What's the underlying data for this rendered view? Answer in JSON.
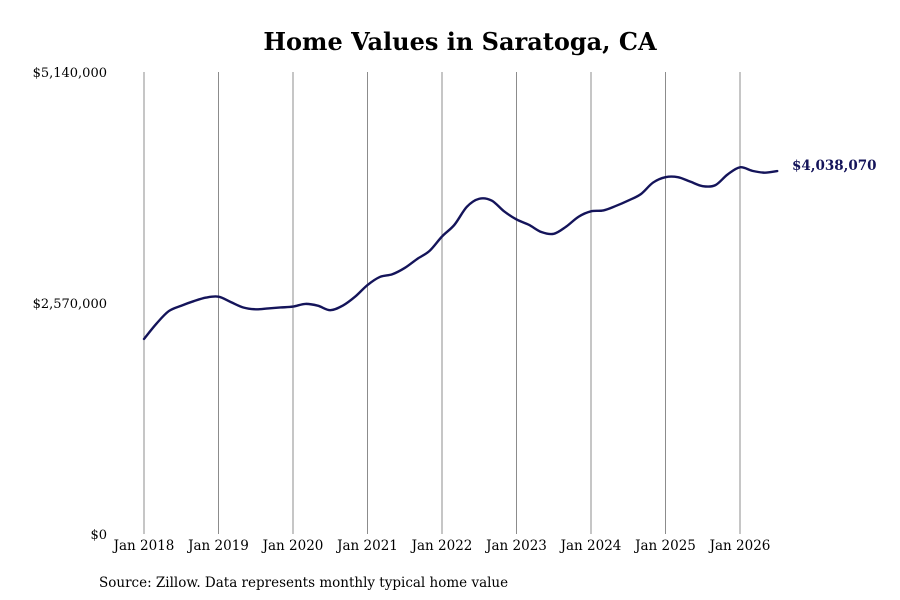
{
  "chart_data": {
    "type": "line",
    "title": "Home Values in Saratoga, CA",
    "xlabel": "",
    "ylabel": "",
    "ylim": [
      0,
      5140000
    ],
    "xlim": [
      "2018-01",
      "2026-07"
    ],
    "y_ticks": [
      "$0",
      "$2,570,000",
      "$5,140,000"
    ],
    "x_ticks": [
      "Jan 2018",
      "Jan 2019",
      "Jan 2020",
      "Jan 2021",
      "Jan 2022",
      "Jan 2023",
      "Jan 2024",
      "Jan 2025",
      "Jan 2026"
    ],
    "grid": "vertical lines at yearly ticks",
    "line_color": "#14145a",
    "end_label": "$4,038,070",
    "series": [
      {
        "x": [
          "2018-01",
          "2018-03",
          "2018-05",
          "2018-07",
          "2018-09",
          "2018-11",
          "2019-01",
          "2019-03",
          "2019-05",
          "2019-07",
          "2019-09",
          "2019-11",
          "2020-01",
          "2020-03",
          "2020-05",
          "2020-07",
          "2020-09",
          "2020-11",
          "2021-01",
          "2021-03",
          "2021-05",
          "2021-07",
          "2021-09",
          "2021-11",
          "2022-01",
          "2022-03",
          "2022-05",
          "2022-07",
          "2022-09",
          "2022-11",
          "2023-01",
          "2023-03",
          "2023-05",
          "2023-07",
          "2023-09",
          "2023-11",
          "2024-01",
          "2024-03",
          "2024-05",
          "2024-07",
          "2024-09",
          "2024-11",
          "2025-01",
          "2025-03",
          "2025-05",
          "2025-07",
          "2025-09",
          "2025-11",
          "2026-01",
          "2026-03",
          "2026-05",
          "2026-07"
        ],
        "values": [
          2170000,
          2340000,
          2480000,
          2540000,
          2590000,
          2630000,
          2640000,
          2580000,
          2520000,
          2500000,
          2510000,
          2520000,
          2530000,
          2560000,
          2540000,
          2490000,
          2540000,
          2640000,
          2770000,
          2860000,
          2890000,
          2960000,
          3060000,
          3150000,
          3310000,
          3440000,
          3640000,
          3730000,
          3710000,
          3590000,
          3500000,
          3440000,
          3360000,
          3340000,
          3420000,
          3530000,
          3590000,
          3600000,
          3650000,
          3710000,
          3780000,
          3910000,
          3970000,
          3970000,
          3920000,
          3870000,
          3880000,
          4000000,
          4080000,
          4040000,
          4020000,
          4038070
        ]
      }
    ]
  },
  "footer": {
    "source": "Source: Zillow. Data represents monthly typical home value"
  }
}
